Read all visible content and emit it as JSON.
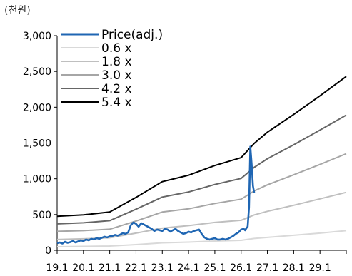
{
  "chart_data": {
    "type": "line",
    "unit_label": "(천원)",
    "yticks": [
      "0",
      "500",
      "1,000",
      "1,500",
      "2,000",
      "2,500",
      "3,000"
    ],
    "ylim": [
      0,
      3000
    ],
    "xlabels": [
      "19.1",
      "20.1",
      "21.1",
      "22.1",
      "23.1",
      "24.1",
      "25.1",
      "26.1",
      "27.1",
      "28.1",
      "29.1"
    ],
    "xlim": [
      2019.0,
      2030.0
    ],
    "legend_position": "top-left",
    "series": [
      {
        "name": "Price(adj.)",
        "color": "#1f66b3",
        "x": [
          2019.0,
          2019.1,
          2019.2,
          2019.3,
          2019.4,
          2019.5,
          2019.6,
          2019.7,
          2019.8,
          2019.9,
          2020.0,
          2020.1,
          2020.2,
          2020.3,
          2020.4,
          2020.5,
          2020.6,
          2020.7,
          2020.8,
          2020.9,
          2021.0,
          2021.1,
          2021.2,
          2021.3,
          2021.4,
          2021.5,
          2021.6,
          2021.7,
          2021.8,
          2021.9,
          2022.0,
          2022.1,
          2022.2,
          2022.3,
          2022.4,
          2022.5,
          2022.6,
          2022.7,
          2022.8,
          2022.9,
          2023.0,
          2023.1,
          2023.2,
          2023.3,
          2023.4,
          2023.5,
          2023.6,
          2023.7,
          2023.8,
          2023.9,
          2024.0,
          2024.1,
          2024.2,
          2024.3,
          2024.4,
          2024.5,
          2024.6,
          2024.7,
          2024.8,
          2024.9,
          2025.0,
          2025.1,
          2025.2,
          2025.3,
          2025.4,
          2025.5,
          2025.6,
          2025.7,
          2025.8,
          2025.9,
          2026.0,
          2026.1,
          2026.15,
          2026.2,
          2026.25,
          2026.3,
          2026.35,
          2026.4,
          2026.45,
          2026.5
        ],
        "values": [
          100,
          110,
          95,
          120,
          105,
          115,
          130,
          110,
          125,
          140,
          130,
          150,
          140,
          160,
          150,
          170,
          160,
          175,
          190,
          180,
          195,
          200,
          215,
          205,
          220,
          240,
          230,
          250,
          350,
          390,
          370,
          330,
          380,
          360,
          340,
          320,
          300,
          270,
          290,
          280,
          270,
          300,
          290,
          260,
          280,
          300,
          270,
          250,
          230,
          240,
          260,
          250,
          270,
          280,
          290,
          230,
          180,
          160,
          150,
          160,
          170,
          150,
          150,
          160,
          150,
          160,
          180,
          200,
          230,
          250,
          290,
          300,
          280,
          310,
          330,
          600,
          1450,
          1200,
          900,
          800
        ]
      },
      {
        "name": "0.6 x",
        "color": "#d9d9d9",
        "x": [
          2019.0,
          2020.0,
          2021.0,
          2022.0,
          2023.0,
          2024.0,
          2025.0,
          2026.0,
          2026.5,
          2027.0,
          2028.0,
          2029.0,
          2030.0
        ],
        "values": [
          50,
          55,
          60,
          80,
          105,
          115,
          130,
          140,
          165,
          180,
          210,
          240,
          275
        ]
      },
      {
        "name": "1.8 x",
        "color": "#bfbfbf",
        "x": [
          2019.0,
          2020.0,
          2021.0,
          2022.0,
          2023.0,
          2024.0,
          2025.0,
          2026.0,
          2026.5,
          2027.0,
          2028.0,
          2029.0,
          2030.0
        ],
        "values": [
          150,
          160,
          175,
          240,
          310,
          345,
          390,
          420,
          495,
          545,
          630,
          720,
          810
        ]
      },
      {
        "name": "3.0 x",
        "color": "#a6a6a6",
        "x": [
          2019.0,
          2020.0,
          2021.0,
          2022.0,
          2023.0,
          2024.0,
          2025.0,
          2026.0,
          2026.5,
          2027.0,
          2028.0,
          2029.0,
          2030.0
        ],
        "values": [
          265,
          275,
          295,
          410,
          535,
          580,
          655,
          715,
          830,
          915,
          1055,
          1200,
          1350
        ]
      },
      {
        "name": "4.2 x",
        "color": "#666666",
        "x": [
          2019.0,
          2020.0,
          2021.0,
          2022.0,
          2023.0,
          2024.0,
          2025.0,
          2026.0,
          2026.5,
          2027.0,
          2028.0,
          2029.0,
          2030.0
        ],
        "values": [
          370,
          385,
          415,
          575,
          745,
          815,
          920,
          1005,
          1160,
          1280,
          1475,
          1680,
          1890
        ]
      },
      {
        "name": "5.4 x",
        "color": "#000000",
        "x": [
          2019.0,
          2020.0,
          2021.0,
          2022.0,
          2023.0,
          2024.0,
          2025.0,
          2026.0,
          2026.5,
          2027.0,
          2028.0,
          2029.0,
          2030.0
        ],
        "values": [
          475,
          495,
          535,
          740,
          960,
          1050,
          1185,
          1295,
          1495,
          1650,
          1900,
          2160,
          2430
        ]
      }
    ]
  }
}
